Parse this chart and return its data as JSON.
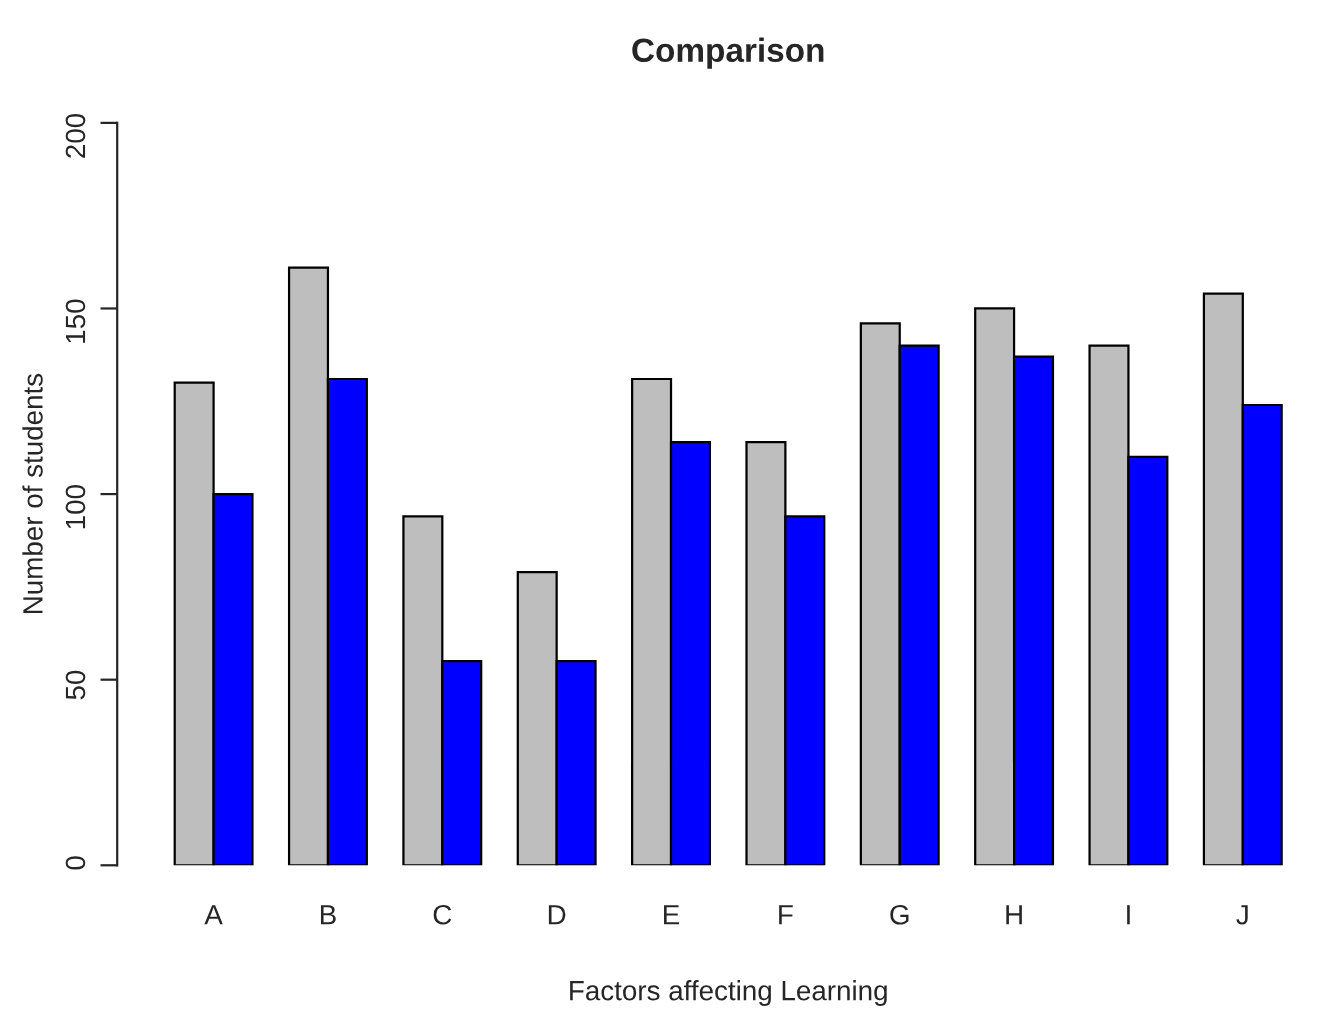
{
  "chart_data": {
    "type": "bar",
    "title": "Comparison",
    "xlabel": "Factors affecting Learning",
    "ylabel": "Number of students",
    "categories": [
      "A",
      "B",
      "C",
      "D",
      "E",
      "F",
      "G",
      "H",
      "I",
      "J"
    ],
    "series": [
      {
        "color": "#bebebe",
        "values": [
          130,
          161,
          94,
          79,
          131,
          114,
          146,
          150,
          140,
          154
        ]
      },
      {
        "color": "#0000ff",
        "values": [
          100,
          131,
          55,
          55,
          114,
          94,
          140,
          137,
          110,
          124
        ]
      }
    ],
    "ylim": [
      0,
      200
    ],
    "yticks": [
      0,
      50,
      100,
      150,
      200
    ],
    "grid": false,
    "legend": false
  }
}
